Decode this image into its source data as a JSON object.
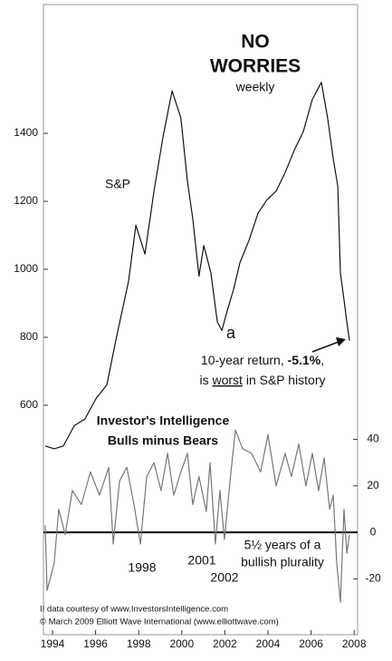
{
  "chart_data": {
    "type": "line",
    "title": [
      "NO",
      "WORRIES"
    ],
    "subtitle": "weekly",
    "xlim": [
      1993.58,
      2008.16
    ],
    "xticks": [
      1994,
      1996,
      1998,
      2000,
      2002,
      2004,
      2006,
      2008
    ],
    "ylim": [
      -75,
      1779
    ],
    "yticks": [
      600,
      800,
      1000,
      1200,
      1400
    ],
    "y2lim": [
      -44,
      227
    ],
    "y2ticks": [
      -20,
      0,
      20,
      40
    ],
    "y2_reference": 0,
    "series": [
      {
        "name": "S&P",
        "color": "#111111",
        "axis": "y",
        "x": [
          1993.66,
          1994.08,
          1994.5,
          1995.01,
          1995.51,
          1996.02,
          1996.52,
          1996.94,
          1997.53,
          1997.87,
          1998.29,
          1998.71,
          1999.13,
          1999.55,
          1999.96,
          2000.26,
          2000.51,
          2000.8,
          2001.02,
          2001.35,
          2001.65,
          2001.86,
          2002.07,
          2002.4,
          2002.7,
          2003.12,
          2003.54,
          2003.96,
          2004.38,
          2004.8,
          2005.22,
          2005.64,
          2006.06,
          2006.48,
          2006.77,
          2007.03,
          2007.24,
          2007.36,
          2007.53,
          2007.66,
          2007.78
        ],
        "values": [
          480,
          472,
          480,
          540,
          560,
          620,
          660,
          792,
          965,
          1130,
          1045,
          1230,
          1390,
          1525,
          1445,
          1260,
          1150,
          980,
          1070,
          990,
          845,
          820,
          870,
          940,
          1020,
          1085,
          1165,
          1205,
          1230,
          1285,
          1350,
          1405,
          1500,
          1550,
          1445,
          1325,
          1245,
          990,
          910,
          845,
          790
        ]
      },
      {
        "name": "Investor's Intelligence Bulls minus Bears",
        "color": "#777777",
        "axis": "y2",
        "x": [
          1993.66,
          1993.75,
          1994.08,
          1994.29,
          1994.59,
          1994.92,
          1995.34,
          1995.76,
          1996.18,
          1996.61,
          1996.82,
          1997.11,
          1997.45,
          1997.78,
          1998.08,
          1998.37,
          1998.71,
          1999.04,
          1999.34,
          1999.63,
          1999.96,
          2000.26,
          2000.51,
          2000.8,
          2001.14,
          2001.31,
          2001.56,
          2001.77,
          2001.98,
          2002.28,
          2002.49,
          2002.82,
          2003.24,
          2003.66,
          2004.0,
          2004.38,
          2004.8,
          2005.09,
          2005.43,
          2005.76,
          2006.06,
          2006.35,
          2006.61,
          2006.86,
          2007.03,
          2007.19,
          2007.36,
          2007.53,
          2007.66,
          2007.78
        ],
        "values": [
          3,
          -25,
          -13,
          10,
          -1,
          18,
          12,
          26,
          16,
          28,
          -5,
          22,
          28,
          12,
          -5,
          24,
          30,
          18,
          34,
          16,
          26,
          34,
          12,
          24,
          9,
          30,
          -5,
          18,
          -3,
          26,
          44,
          36,
          34,
          26,
          42,
          20,
          34,
          24,
          38,
          20,
          34,
          18,
          32,
          10,
          16,
          -13,
          -30,
          10,
          -9,
          -1
        ]
      }
    ],
    "series_labels": [
      "S&P",
      [
        "Investor's Intelligence",
        "Bulls minus Bears"
      ]
    ],
    "annotations": {
      "low_label": "a",
      "return_note": [
        [
          "10-year return, ",
          "-5.1%",
          ","
        ],
        [
          "is ",
          "worst",
          " in S&P history"
        ]
      ],
      "plurality_note": [
        "5½ years of a",
        "bullish plurality"
      ],
      "years": [
        "1998",
        "2001",
        "2002"
      ]
    },
    "footer": [
      "II data courtesy of www.InvestorsIntelligence.com",
      "© March 2009 Elliott Wave International (www.elliottwave.com)"
    ]
  }
}
